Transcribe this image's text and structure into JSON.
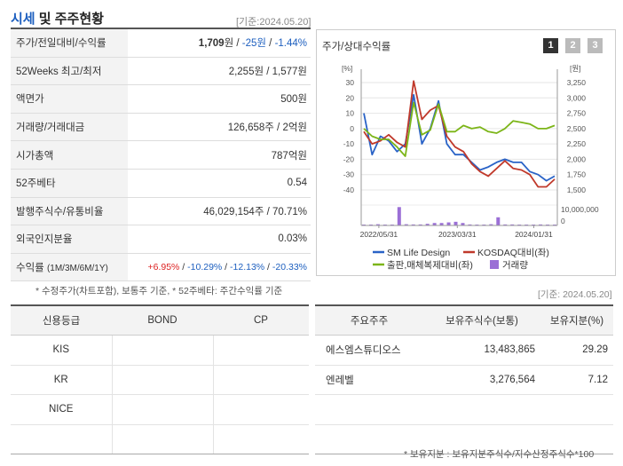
{
  "header": {
    "title_main": "시세",
    "title_rest": "및 주주현황",
    "date": "[기준:2024.05.20]"
  },
  "price_table": {
    "rows": [
      {
        "label": "주가/전일대비/수익률",
        "price": "1,709",
        "unit": "원",
        "change": "-25원",
        "rate": "-1.44%"
      },
      {
        "label": "52Weeks 최고/최저",
        "value": "2,255원 / 1,577원"
      },
      {
        "label": "액면가",
        "value": "500원"
      },
      {
        "label": "거래량/거래대금",
        "value": "126,658주 / 2억원"
      },
      {
        "label": "시가총액",
        "value": "787억원"
      },
      {
        "label": "52주베타",
        "value": "0.54"
      },
      {
        "label": "발행주식수/유통비율",
        "value": "46,029,154주 / 70.71%"
      },
      {
        "label": "외국인지분율",
        "value": "0.03%"
      }
    ],
    "return_row": {
      "label": "수익률",
      "periods": "(1M/3M/6M/1Y)",
      "r1m": "+6.95%",
      "r3m": "-10.29%",
      "r6m": "-12.13%",
      "r1y": "-20.33%"
    }
  },
  "chart_panel": {
    "title": "주가/상대수익률",
    "period_buttons": [
      "1",
      "2",
      "3"
    ],
    "active_button": "1",
    "button_colors": {
      "active": "#333333",
      "inactive": "#bbbbbb"
    }
  },
  "chart_data": {
    "type": "line",
    "left_unit": "[%]",
    "right_unit": "[원]",
    "x_ticks": [
      "2022/05/31",
      "2023/03/31",
      "2024/01/31"
    ],
    "left_axis": {
      "ticks": [
        "30",
        "20",
        "10",
        "0",
        "-10",
        "-20",
        "-30",
        "-40"
      ],
      "ylim": [
        -40,
        30
      ]
    },
    "right_axis": {
      "ticks": [
        "3,250",
        "3,000",
        "2,750",
        "2,500",
        "2,250",
        "2,000",
        "1,750",
        "1,500"
      ],
      "ylim": [
        1500,
        3250
      ]
    },
    "volume_axis": {
      "ticks": [
        "10,000,000",
        "0"
      ]
    },
    "series": [
      {
        "name": "SM Life Design",
        "color": "#2a63c7",
        "values": [
          10,
          -17,
          -5,
          -8,
          -15,
          -10,
          22,
          -10,
          0,
          18,
          -10,
          -17,
          -17,
          -22,
          -27,
          -25,
          -22,
          -20,
          -22,
          -22,
          -28,
          -30,
          -34,
          -31
        ]
      },
      {
        "name": "KOSDAQ대비(좌)",
        "color": "#c0392b",
        "values": [
          -2,
          -10,
          -8,
          -4,
          -9,
          -12,
          31,
          6,
          12,
          15,
          -5,
          -12,
          -15,
          -23,
          -28,
          -31,
          -26,
          -21,
          -26,
          -27,
          -30,
          -38,
          -38,
          -33
        ]
      },
      {
        "name": "출판,매체복제대비(좌)",
        "color": "#7cb518",
        "values": [
          0,
          -5,
          -7,
          -7,
          -12,
          -18,
          17,
          -4,
          -1,
          16,
          -2,
          -2,
          2,
          0,
          1,
          -2,
          -3,
          0,
          5,
          4,
          3,
          0,
          0,
          2
        ]
      },
      {
        "name": "거래량",
        "color": "#9b6fd6",
        "type": "bar",
        "values": [
          0.3,
          0.3,
          0.6,
          0.3,
          0.3,
          9.0,
          0.6,
          0.5,
          0.5,
          0.8,
          1.2,
          1.2,
          1.5,
          1.8,
          1.2,
          0.5,
          0.3,
          0.3,
          0.6,
          4.0,
          0.5,
          0.5,
          0.3,
          0.3,
          0.2,
          0.5,
          0.2,
          0.2
        ]
      }
    ]
  },
  "notes": {
    "price_note": "* 수정주가(차트포함), 보통주 기준, * 52주베타: 주간수익률 기준",
    "date2": "[기준: 2024.05.20]",
    "share_note": "* 보유지분 : 보유지분주식수/지수산정주식수*100"
  },
  "credit_table": {
    "headers": [
      "신용등급",
      "BOND",
      "CP"
    ],
    "rows": [
      [
        "KIS",
        "",
        ""
      ],
      [
        "KR",
        "",
        ""
      ],
      [
        "NICE",
        "",
        ""
      ],
      [
        "",
        "",
        ""
      ]
    ]
  },
  "share_table": {
    "headers": [
      "주요주주",
      "보유주식수(보통)",
      "보유지분(%)"
    ],
    "rows": [
      [
        "에스엠스튜디오스",
        "13,483,865",
        "29.29"
      ],
      [
        "엔레벨",
        "3,276,564",
        "7.12"
      ],
      [
        "",
        "",
        ""
      ],
      [
        "",
        "",
        ""
      ]
    ]
  }
}
